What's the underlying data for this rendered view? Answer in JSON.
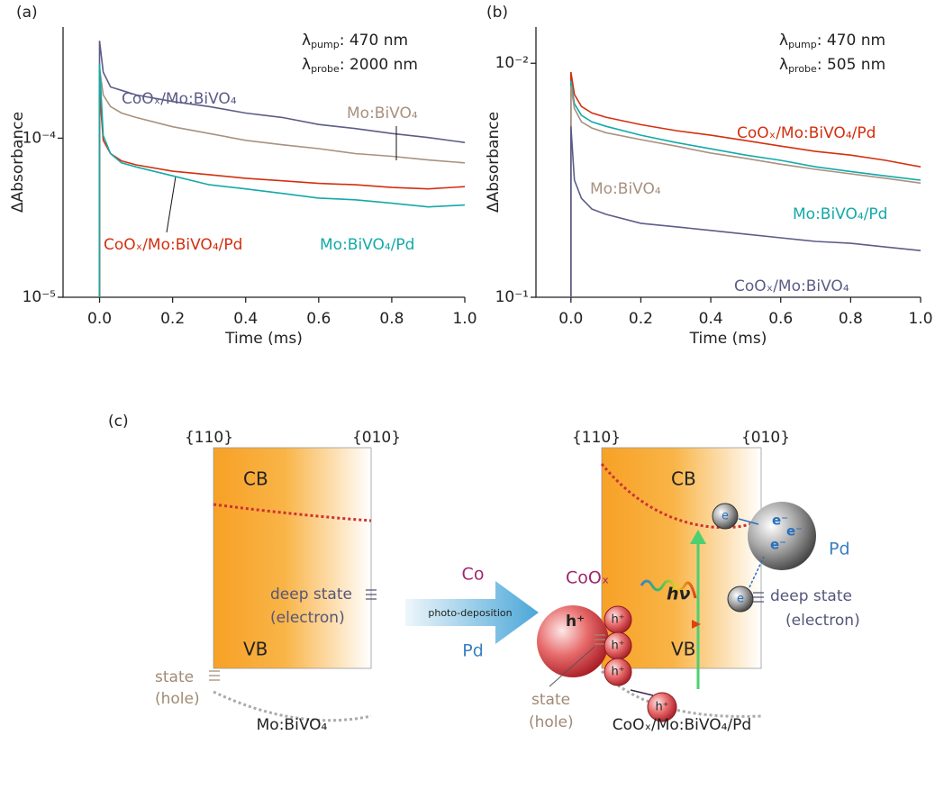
{
  "chart_data": [
    {
      "type": "line",
      "panel_label": "(a)",
      "xlabel": "Time (ms)",
      "ylabel": "ΔAbsorbance",
      "log_y": true,
      "xlim": [
        -0.1,
        1.0
      ],
      "xticks": [
        {
          "value": 0,
          "label": "0.0"
        },
        0.2,
        0.4,
        0.6,
        0.8,
        {
          "value": 1,
          "label": "1.0"
        }
      ],
      "ylim": [
        1e-05,
        0.0005
      ],
      "yticks": [
        {
          "value": 0.0001,
          "label": "10⁻⁴"
        },
        {
          "value": 1e-05,
          "label": "10⁻⁵"
        }
      ],
      "annotations": [
        {
          "symbol": "λ",
          "sub": "pump",
          "text": ": 470 nm"
        },
        {
          "symbol": "λ",
          "sub": "probe",
          "text": ": 2000 nm"
        }
      ],
      "x": [
        0,
        0,
        0.01,
        0.03,
        0.06,
        0.1,
        0.2,
        0.3,
        0.4,
        0.5,
        0.6,
        0.7,
        0.8,
        0.9,
        1.0
      ],
      "series": [
        {
          "name": "CoOₓ/Mo:BiVO₄",
          "color": "#5c5c88",
          "values": [
            1e-05,
            0.00041,
            0.00026,
            0.00021,
            0.0002,
            0.000187,
            0.00017,
            0.000158,
            0.000144,
            0.000135,
            0.000122,
            0.000115,
            0.000107,
            0.000101,
            9.4e-05
          ]
        },
        {
          "name": "Mo:BiVO₄",
          "color": "#a8917f",
          "values": [
            1e-05,
            0.000276,
            0.000187,
            0.000158,
            0.000144,
            0.000135,
            0.000118,
            0.000107,
            9.7e-05,
            9.1e-05,
            8.6e-05,
            8e-05,
            7.7e-05,
            7.3e-05,
            7e-05
          ]
        },
        {
          "name": "CoOₓ/Mo:BiVO₄/Pd",
          "color": "#d3300f",
          "values": [
            1e-05,
            0.0002,
            9.7e-05,
            8e-05,
            7.2e-05,
            6.8e-05,
            6.2e-05,
            5.9e-05,
            5.6e-05,
            5.4e-05,
            5.2e-05,
            5.1e-05,
            4.9e-05,
            4.8e-05,
            4.96e-05
          ]
        },
        {
          "name": "Mo:BiVO₄/Pd",
          "color": "#14a9a9",
          "values": [
            1e-05,
            0.000294,
            0.000104,
            8e-05,
            7e-05,
            6.6e-05,
            5.8e-05,
            5.1e-05,
            4.8e-05,
            4.5e-05,
            4.2e-05,
            4.1e-05,
            3.9e-05,
            3.7e-05,
            3.8e-05
          ]
        }
      ]
    },
    {
      "type": "line",
      "panel_label": "(b)",
      "xlabel": "Time (ms)",
      "ylabel": "ΔAbsorbance",
      "log_y": true,
      "xlim": [
        -0.1,
        1.0
      ],
      "xticks": [
        {
          "value": 0,
          "label": "0.0"
        },
        0.2,
        0.4,
        0.6,
        0.8,
        {
          "value": 1,
          "label": "1.0"
        }
      ],
      "ylim": [
        0.1,
        0.007
      ],
      "yticks": [
        {
          "value": 0.01,
          "label": "10⁻²"
        },
        {
          "value": 0.1,
          "label": "10⁻¹"
        }
      ],
      "annotations": [
        {
          "symbol": "λ",
          "sub": "pump",
          "text": ": 470 nm"
        },
        {
          "symbol": "λ",
          "sub": "probe",
          "text": ": 505 nm"
        }
      ],
      "x": [
        0,
        0,
        0.01,
        0.03,
        0.06,
        0.1,
        0.2,
        0.3,
        0.4,
        0.5,
        0.6,
        0.7,
        0.8,
        0.9,
        1.0
      ],
      "series": [
        {
          "name": "CoOₓ/Mo:BiVO₄/Pd",
          "color": "#d3300f",
          "values": [
            0.1,
            0.0109,
            0.0136,
            0.0153,
            0.0163,
            0.017,
            0.0183,
            0.0194,
            0.0203,
            0.0214,
            0.0226,
            0.0238,
            0.0247,
            0.026,
            0.0277
          ]
        },
        {
          "name": "Mo:BiVO₄/Pd",
          "color": "#14a9a9",
          "values": [
            0.1,
            0.0119,
            0.0149,
            0.0167,
            0.0178,
            0.0186,
            0.0203,
            0.0218,
            0.0232,
            0.0247,
            0.026,
            0.0277,
            0.029,
            0.0303,
            0.0316
          ]
        },
        {
          "name": "Mo:BiVO₄",
          "color": "#a8917f",
          "values": [
            0.1,
            0.0125,
            0.0156,
            0.0178,
            0.0189,
            0.0198,
            0.0212,
            0.0226,
            0.0242,
            0.0255,
            0.027,
            0.0284,
            0.0297,
            0.031,
            0.0325
          ]
        },
        {
          "name": "CoOₓ/Mo:BiVO₄",
          "color": "#5c5c88",
          "values": [
            0.1,
            0.0186,
            0.0316,
            0.0378,
            0.042,
            0.0442,
            0.0483,
            0.05,
            0.0518,
            0.0537,
            0.0557,
            0.0577,
            0.0588,
            0.061,
            0.0632
          ]
        }
      ]
    }
  ],
  "diagram": {
    "panel_label": "(c)",
    "left": {
      "facet_left": "{110}",
      "facet_right": "{010}",
      "cb": "CB",
      "vb": "VB",
      "deep_state": [
        "deep state",
        "(electron)"
      ],
      "hole_state": [
        "state",
        "(hole)"
      ],
      "caption": "Mo:BiVO₄"
    },
    "arrow": {
      "top": "Co",
      "middle": "photo-deposition",
      "bottom": "Pd"
    },
    "right": {
      "facet_left": "{110}",
      "facet_right": "{010}",
      "cb": "CB",
      "vb": "VB",
      "cocatalyst": "CoOₓ",
      "hole": "h⁺",
      "electron": "e",
      "electron_pd": "e⁻",
      "photon": "hν",
      "metal": "Pd",
      "deep_state": [
        "deep state",
        "(electron)"
      ],
      "hole_state": [
        "state",
        "(hole)"
      ],
      "caption": "CoOₓ/Mo:BiVO₄/Pd"
    }
  }
}
